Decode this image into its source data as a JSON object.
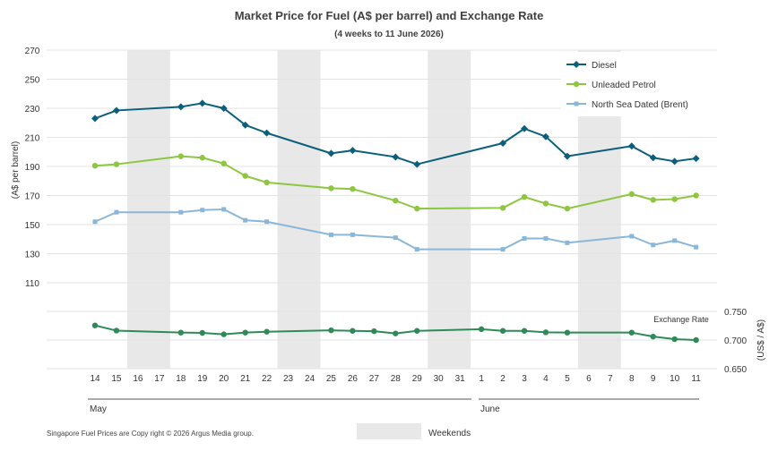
{
  "chart_data": {
    "type": "line",
    "title": "Market Price for Fuel (A$ per barrel) and Exchange Rate",
    "subtitle": "(4 weeks to 11 June 2026)",
    "ylabel": "(A$ per barrel)",
    "y2label": "(US$ / A$)",
    "ylim": [
      110,
      270
    ],
    "yticks": [
      "270",
      "250",
      "230",
      "210",
      "190",
      "170",
      "150",
      "130",
      "110"
    ],
    "y2lim": [
      0.65,
      0.75
    ],
    "y2ticks": [
      "0.750",
      "0.700",
      "0.650"
    ],
    "grid": true,
    "legend_position": "top-right",
    "x": [
      "14",
      "15",
      "16",
      "17",
      "18",
      "19",
      "20",
      "21",
      "22",
      "23",
      "24",
      "25",
      "26",
      "27",
      "28",
      "29",
      "30",
      "31",
      "1",
      "2",
      "3",
      "4",
      "5",
      "6",
      "7",
      "8",
      "9",
      "10",
      "11"
    ],
    "months": [
      "May",
      "June"
    ],
    "weekends": [
      [
        "16",
        "17"
      ],
      [
        "23",
        "24"
      ],
      [
        "30",
        "31"
      ],
      [
        "6",
        "7"
      ]
    ],
    "series": [
      {
        "name": "Diesel",
        "color": "#0b5f7a",
        "marker": "diamond",
        "values": [
          223,
          228.5,
          null,
          null,
          231,
          233.5,
          230,
          218.5,
          213,
          null,
          null,
          199,
          201,
          null,
          196.5,
          191.5,
          null,
          null,
          null,
          206,
          216,
          210.5,
          197,
          null,
          null,
          204,
          196,
          193.5,
          195.5
        ]
      },
      {
        "name": "Unleaded Petrol",
        "color": "#8dc63f",
        "marker": "circle",
        "values": [
          190.5,
          191.5,
          null,
          null,
          197,
          196,
          192,
          183.5,
          179,
          null,
          null,
          175,
          174.5,
          null,
          166.5,
          161,
          null,
          null,
          null,
          161.5,
          169,
          164.5,
          161,
          null,
          null,
          171,
          167,
          167.5,
          170
        ]
      },
      {
        "name": "North Sea Dated (Brent)",
        "color": "#8ab7d8",
        "marker": "square",
        "values": [
          152,
          158.5,
          null,
          null,
          158.5,
          160,
          160.5,
          153,
          152,
          null,
          null,
          143,
          143,
          null,
          141,
          133,
          null,
          null,
          null,
          133,
          140.5,
          140.5,
          137.5,
          null,
          null,
          142,
          136,
          139,
          134.5
        ]
      },
      {
        "name": "Exchange Rate",
        "color": "#2e8b57",
        "marker": "circle",
        "axis": "right",
        "values": [
          0.7255,
          0.7165,
          null,
          null,
          0.713,
          0.7125,
          0.71,
          0.713,
          0.7145,
          null,
          null,
          0.717,
          0.716,
          0.7155,
          0.7115,
          0.716,
          null,
          null,
          0.719,
          0.716,
          0.716,
          0.7135,
          0.713,
          null,
          null,
          0.713,
          0.706,
          0.7015,
          0.7
        ]
      }
    ],
    "series2_label": "Exchange Rate",
    "weekend_legend": "Weekends",
    "copyright": "Singapore  Fuel Prices are  Copy right © 2026 Argus Media  group."
  }
}
